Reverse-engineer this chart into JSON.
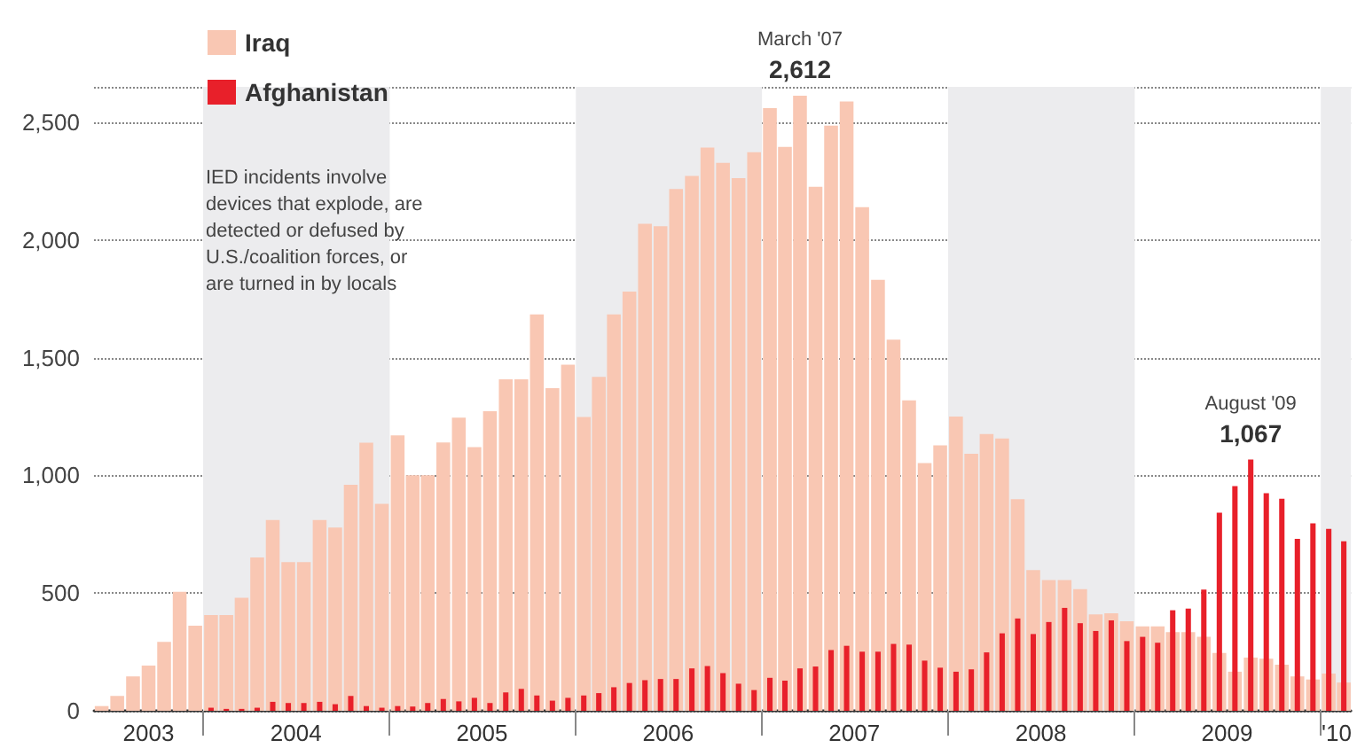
{
  "chart_data": {
    "type": "bar",
    "x": [
      "2003-06",
      "2003-07",
      "2003-08",
      "2003-09",
      "2003-10",
      "2003-11",
      "2003-12",
      "2004-01",
      "2004-02",
      "2004-03",
      "2004-04",
      "2004-05",
      "2004-06",
      "2004-07",
      "2004-08",
      "2004-09",
      "2004-10",
      "2004-11",
      "2004-12",
      "2005-01",
      "2005-02",
      "2005-03",
      "2005-04",
      "2005-05",
      "2005-06",
      "2005-07",
      "2005-08",
      "2005-09",
      "2005-10",
      "2005-11",
      "2005-12",
      "2006-01",
      "2006-02",
      "2006-03",
      "2006-04",
      "2006-05",
      "2006-06",
      "2006-07",
      "2006-08",
      "2006-09",
      "2006-10",
      "2006-11",
      "2006-12",
      "2007-01",
      "2007-02",
      "2007-03",
      "2007-04",
      "2007-05",
      "2007-06",
      "2007-07",
      "2007-08",
      "2007-09",
      "2007-10",
      "2007-11",
      "2007-12",
      "2008-01",
      "2008-02",
      "2008-03",
      "2008-04",
      "2008-05",
      "2008-06",
      "2008-07",
      "2008-08",
      "2008-09",
      "2008-10",
      "2008-11",
      "2008-12",
      "2009-01",
      "2009-02",
      "2009-03",
      "2009-04",
      "2009-05",
      "2009-06",
      "2009-07",
      "2009-08",
      "2009-09",
      "2009-10",
      "2009-11",
      "2009-12",
      "2010-01",
      "2010-02"
    ],
    "series": [
      {
        "name": "Iraq",
        "color": "#f9c7b3",
        "values": [
          20,
          63,
          146,
          192,
          293,
          505,
          361,
          407,
          407,
          480,
          651,
          810,
          631,
          631,
          810,
          778,
          960,
          1139,
          879,
          1170,
          1000,
          1000,
          1140,
          1245,
          1120,
          1272,
          1408,
          1408,
          1684,
          1370,
          1470,
          1248,
          1418,
          1684,
          1780,
          2068,
          2058,
          2216,
          2272,
          2392,
          2327,
          2262,
          2372,
          2560,
          2395,
          2612,
          2226,
          2485,
          2588,
          2139,
          1830,
          1576,
          1318,
          1052,
          1127,
          1250,
          1092,
          1175,
          1157,
          899,
          598,
          555,
          555,
          517,
          409,
          414,
          380,
          359,
          359,
          334,
          334,
          314,
          246,
          166,
          226,
          221,
          196,
          146,
          133,
          158,
          120
        ],
        "value_labels": [
          null,
          null,
          null,
          null,
          null,
          null,
          null,
          null,
          null,
          null,
          null,
          null,
          null,
          null,
          null,
          null,
          null,
          null,
          null,
          null,
          null,
          null,
          null,
          null,
          null,
          null,
          null,
          null,
          null,
          null,
          null,
          null,
          null,
          null,
          null,
          null,
          null,
          null,
          null,
          null,
          null,
          null,
          null,
          null,
          null,
          "2,612",
          null,
          null,
          null,
          null,
          null,
          null,
          null,
          null,
          null,
          null,
          null,
          null,
          null,
          null,
          null,
          null,
          null,
          null,
          null,
          null,
          null,
          null,
          null,
          null,
          null,
          null,
          null,
          null,
          null,
          null,
          null,
          null,
          null,
          null,
          null
        ]
      },
      {
        "name": "Afghanistan",
        "color": "#e8202a",
        "values": [
          null,
          null,
          null,
          null,
          null,
          null,
          null,
          13,
          8,
          8,
          13,
          38,
          33,
          33,
          38,
          28,
          63,
          20,
          13,
          20,
          18,
          33,
          50,
          40,
          55,
          33,
          78,
          93,
          65,
          43,
          55,
          65,
          75,
          100,
          118,
          130,
          135,
          135,
          180,
          190,
          160,
          115,
          88,
          140,
          128,
          180,
          188,
          258,
          276,
          251,
          251,
          284,
          281,
          213,
          183,
          166,
          176,
          248,
          329,
          392,
          326,
          377,
          437,
          372,
          339,
          384,
          296,
          314,
          289,
          427,
          434,
          515,
          841,
          954,
          1067,
          924,
          901,
          730,
          796,
          773,
          720
        ],
        "value_labels": [
          null,
          null,
          null,
          null,
          null,
          null,
          null,
          null,
          null,
          null,
          null,
          null,
          null,
          null,
          null,
          null,
          null,
          null,
          null,
          null,
          null,
          null,
          null,
          null,
          null,
          null,
          null,
          null,
          null,
          null,
          null,
          null,
          null,
          null,
          null,
          null,
          null,
          null,
          null,
          null,
          null,
          null,
          null,
          null,
          null,
          null,
          null,
          null,
          null,
          null,
          null,
          null,
          null,
          null,
          null,
          null,
          null,
          null,
          null,
          null,
          null,
          null,
          null,
          null,
          null,
          null,
          null,
          null,
          null,
          null,
          null,
          null,
          null,
          null,
          "1,067",
          null,
          null,
          null,
          null,
          null,
          null
        ]
      }
    ],
    "xlim": [
      "2003-06",
      "2010-03"
    ],
    "xticks": [
      {
        "value": "2003-09-16",
        "label": "2003"
      },
      {
        "value": "2004-01",
        "label": null
      },
      {
        "value": "2004-07",
        "label": "2004"
      },
      {
        "value": "2005-01",
        "label": null
      },
      {
        "value": "2005-07",
        "label": "2005"
      },
      {
        "value": "2006-01",
        "label": null
      },
      {
        "value": "2006-07",
        "label": "2006"
      },
      {
        "value": "2007-01",
        "label": null
      },
      {
        "value": "2007-07",
        "label": "2007"
      },
      {
        "value": "2008-01",
        "label": null
      },
      {
        "value": "2008-07",
        "label": "2008"
      },
      {
        "value": "2009-01",
        "label": null
      },
      {
        "value": "2009-07",
        "label": "2009"
      },
      {
        "value": "2010-01",
        "label": null
      },
      {
        "value": "2010-02",
        "label": "'10"
      }
    ],
    "ylim": [
      0,
      2650
    ],
    "yticks": [
      0,
      {
        "value": 500,
        "label": "500"
      },
      {
        "value": 1000,
        "label": "1,000"
      },
      {
        "value": 1500,
        "label": "1,500"
      },
      {
        "value": 2000,
        "label": "2,000"
      },
      {
        "value": 2500,
        "label": "2,500"
      }
    ],
    "bands": [
      {
        "axis": "x",
        "from": "2004-01",
        "to": "2005-01",
        "color": "#ececee"
      },
      {
        "axis": "x",
        "from": "2006-01",
        "to": "2007-01",
        "color": "#ececee"
      },
      {
        "axis": "x",
        "from": "2008-01",
        "to": "2009-01",
        "color": "#ececee"
      },
      {
        "axis": "x",
        "from": "2010-01",
        "to": "2010-03",
        "color": "#ececee"
      }
    ],
    "annotations": [
      "IED incidents involve devices that explode, are detected or defused by U.S./coalition forces, or are turned in by locals",
      {
        "text": "March '07",
        "x": "2007-03",
        "y": 2612
      },
      {
        "text": "August '09",
        "x": "2009-08",
        "y": 1067
      }
    ],
    "grid": "y",
    "legend": "top left"
  }
}
